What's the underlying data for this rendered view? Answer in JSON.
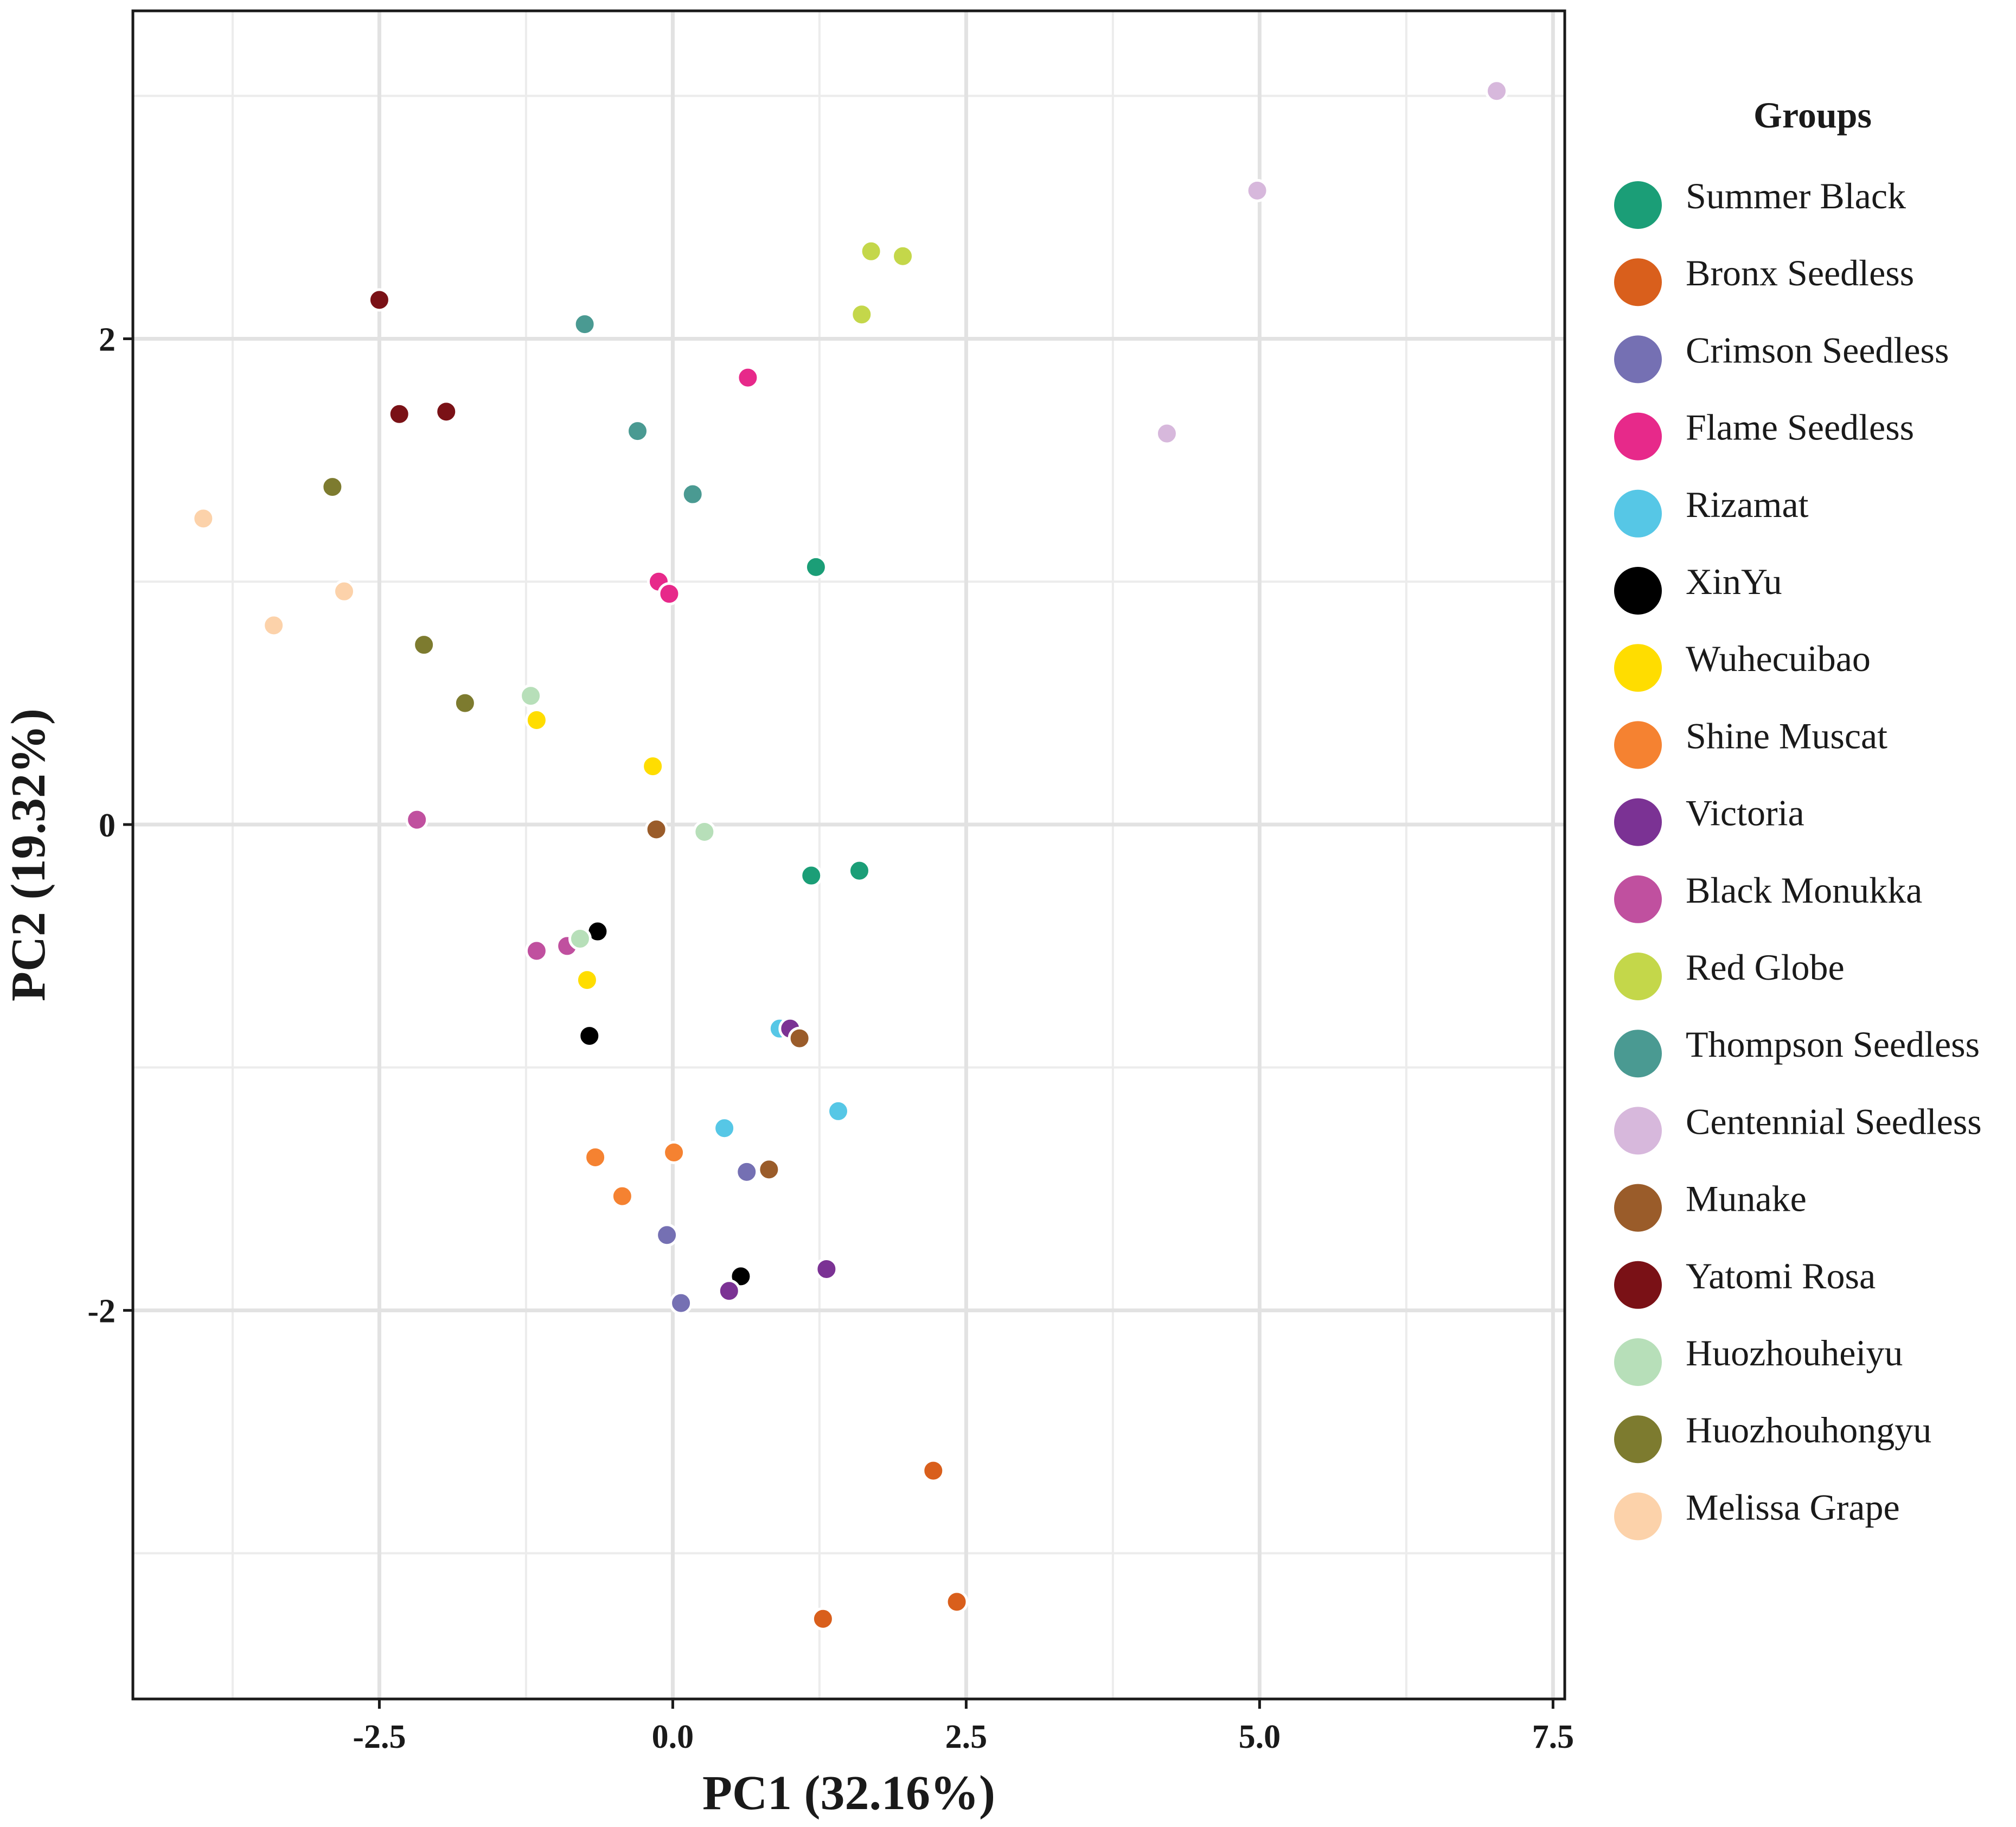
{
  "chart_data": {
    "type": "scatter",
    "title": "",
    "xlabel": "PC1 (32.16%)",
    "ylabel": "PC2 (19.32%)",
    "xlim": [
      -4.6,
      7.6
    ],
    "ylim": [
      -3.6,
      3.35
    ],
    "x_ticks": [
      -2.5,
      0.0,
      2.5,
      5.0,
      7.5
    ],
    "x_tick_labels": [
      "-2.5",
      "0.0",
      "2.5",
      "5.0",
      "7.5"
    ],
    "y_ticks": [
      -2,
      0,
      2
    ],
    "y_tick_labels": [
      "-2",
      "0",
      "2"
    ],
    "grid": true,
    "legend_title": "Groups",
    "legend_position": "right",
    "series": [
      {
        "name": "Summer Black",
        "color": "#1b9e77",
        "points": [
          [
            1.22,
            1.06
          ],
          [
            1.18,
            -0.21
          ],
          [
            1.59,
            -0.19
          ]
        ]
      },
      {
        "name": "Bronx Seedless",
        "color": "#d95f1c",
        "points": [
          [
            2.22,
            -2.66
          ],
          [
            2.42,
            -3.2
          ],
          [
            1.28,
            -3.27
          ]
        ]
      },
      {
        "name": "Crimson Seedless",
        "color": "#7570b3",
        "points": [
          [
            0.63,
            -1.43
          ],
          [
            -0.05,
            -1.69
          ],
          [
            0.07,
            -1.97
          ]
        ]
      },
      {
        "name": "Flame Seedless",
        "color": "#e7298a",
        "points": [
          [
            0.64,
            1.84
          ],
          [
            -0.12,
            1.0
          ],
          [
            -0.03,
            0.95
          ]
        ]
      },
      {
        "name": "Rizamat",
        "color": "#56c7e6",
        "points": [
          [
            0.44,
            -1.25
          ],
          [
            1.41,
            -1.18
          ],
          [
            0.91,
            -0.84
          ]
        ]
      },
      {
        "name": "XinYu",
        "color": "#000000",
        "points": [
          [
            -0.64,
            -0.44
          ],
          [
            -0.71,
            -0.87
          ],
          [
            0.58,
            -1.86
          ]
        ]
      },
      {
        "name": "Wuhecuibao",
        "color": "#ffdd00",
        "points": [
          [
            -1.16,
            0.43
          ],
          [
            -0.17,
            0.24
          ],
          [
            -0.73,
            -0.64
          ]
        ]
      },
      {
        "name": "Shine Muscat",
        "color": "#f58231",
        "points": [
          [
            -0.66,
            -1.37
          ],
          [
            0.01,
            -1.35
          ],
          [
            -0.43,
            -1.53
          ]
        ]
      },
      {
        "name": "Victoria",
        "color": "#7b3294",
        "points": [
          [
            1.0,
            -0.84
          ],
          [
            1.31,
            -1.83
          ],
          [
            0.48,
            -1.92
          ]
        ]
      },
      {
        "name": "Black Monukka",
        "color": "#c0509f",
        "points": [
          [
            -2.18,
            0.02
          ],
          [
            -1.16,
            -0.52
          ],
          [
            -0.9,
            -0.5
          ]
        ]
      },
      {
        "name": "Red Globe",
        "color": "#c4d74a",
        "points": [
          [
            1.69,
            2.36
          ],
          [
            1.96,
            2.34
          ],
          [
            1.61,
            2.1
          ]
        ]
      },
      {
        "name": "Thompson Seedless",
        "color": "#4a9a92",
        "points": [
          [
            -0.75,
            2.06
          ],
          [
            -0.3,
            1.62
          ],
          [
            0.17,
            1.36
          ]
        ]
      },
      {
        "name": "Centennial Seedless",
        "color": "#d7b8dc",
        "points": [
          [
            7.02,
            3.02
          ],
          [
            4.98,
            2.61
          ],
          [
            4.21,
            1.61
          ]
        ]
      },
      {
        "name": "Munake",
        "color": "#9a5c2a",
        "points": [
          [
            -0.14,
            -0.02
          ],
          [
            1.08,
            -0.88
          ],
          [
            0.82,
            -1.42
          ]
        ]
      },
      {
        "name": "Yatomi Rosa",
        "color": "#7a1116",
        "points": [
          [
            -2.5,
            2.16
          ],
          [
            -2.33,
            1.69
          ],
          [
            -1.93,
            1.7
          ]
        ]
      },
      {
        "name": "Huozhouheiyu",
        "color": "#b7dfb9",
        "points": [
          [
            -1.21,
            0.53
          ],
          [
            0.27,
            -0.03
          ],
          [
            -0.79,
            -0.47
          ]
        ]
      },
      {
        "name": "Huozhouhongyu",
        "color": "#7d7b2f",
        "points": [
          [
            -2.9,
            1.39
          ],
          [
            -2.12,
            0.74
          ],
          [
            -1.77,
            0.5
          ]
        ]
      },
      {
        "name": "Melissa Grape",
        "color": "#fcd2aa",
        "points": [
          [
            -4.0,
            1.26
          ],
          [
            -2.8,
            0.96
          ],
          [
            -3.4,
            0.82
          ]
        ]
      }
    ]
  }
}
